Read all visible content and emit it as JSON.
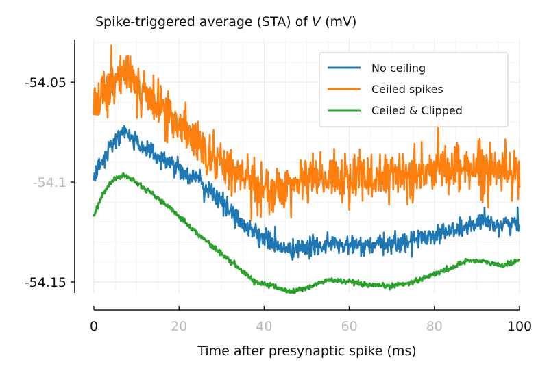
{
  "chart_data": {
    "type": "line",
    "title": {
      "prefix": "Spike-triggered average (STA) of ",
      "variable": "V",
      "suffix": "  (mV)"
    },
    "xlabel": "Time after presynaptic spike  (ms)",
    "ylabel": "",
    "xlim": [
      0,
      100
    ],
    "ylim": [
      -54.1555,
      -54.0287
    ],
    "x_ticks": [
      {
        "value": 0,
        "label": "0",
        "dim": false
      },
      {
        "value": 20,
        "label": "20",
        "dim": true
      },
      {
        "value": 40,
        "label": "40",
        "dim": true
      },
      {
        "value": 60,
        "label": "60",
        "dim": true
      },
      {
        "value": 80,
        "label": "80",
        "dim": true
      },
      {
        "value": 100,
        "label": "100",
        "dim": false
      }
    ],
    "y_ticks": [
      {
        "value": -54.05,
        "label": "-54.05",
        "dim": false
      },
      {
        "value": -54.1,
        "label": "-54.1",
        "dim": true
      },
      {
        "value": -54.15,
        "label": "-54.15",
        "dim": false
      }
    ],
    "grid": true,
    "legend_position": "top-right",
    "series": [
      {
        "name": "No ceiling",
        "color": "#1f77b4",
        "noise": 0.0025,
        "points": [
          [
            0,
            -54.098
          ],
          [
            2,
            -54.09
          ],
          [
            5,
            -54.079
          ],
          [
            7,
            -54.075
          ],
          [
            10,
            -54.08
          ],
          [
            15,
            -54.087
          ],
          [
            20,
            -54.093
          ],
          [
            25,
            -54.1
          ],
          [
            30,
            -54.11
          ],
          [
            35,
            -54.121
          ],
          [
            40,
            -54.128
          ],
          [
            45,
            -54.134
          ],
          [
            50,
            -54.133
          ],
          [
            55,
            -54.131
          ],
          [
            60,
            -54.132
          ],
          [
            65,
            -54.132
          ],
          [
            70,
            -54.131
          ],
          [
            75,
            -54.129
          ],
          [
            80,
            -54.126
          ],
          [
            85,
            -54.124
          ],
          [
            90,
            -54.121
          ],
          [
            95,
            -54.121
          ],
          [
            100,
            -54.121
          ]
        ]
      },
      {
        "name": "Ceiled spikes",
        "color": "#ff7f0e",
        "noise": 0.006,
        "points": [
          [
            0,
            -54.066
          ],
          [
            2,
            -54.058
          ],
          [
            5,
            -54.049
          ],
          [
            7,
            -54.044
          ],
          [
            10,
            -54.052
          ],
          [
            15,
            -54.06
          ],
          [
            20,
            -54.072
          ],
          [
            25,
            -54.082
          ],
          [
            30,
            -54.09
          ],
          [
            35,
            -54.098
          ],
          [
            40,
            -54.102
          ],
          [
            45,
            -54.104
          ],
          [
            50,
            -54.099
          ],
          [
            55,
            -54.097
          ],
          [
            60,
            -54.099
          ],
          [
            65,
            -54.098
          ],
          [
            70,
            -54.096
          ],
          [
            75,
            -54.095
          ],
          [
            80,
            -54.094
          ],
          [
            85,
            -54.093
          ],
          [
            90,
            -54.092
          ],
          [
            95,
            -54.093
          ],
          [
            100,
            -54.092
          ]
        ]
      },
      {
        "name": "Ceiled & Clipped",
        "color": "#2ca02c",
        "noise": 0.0006,
        "points": [
          [
            0,
            -54.117
          ],
          [
            2,
            -54.106
          ],
          [
            4,
            -54.1
          ],
          [
            7,
            -54.096
          ],
          [
            10,
            -54.1
          ],
          [
            15,
            -54.108
          ],
          [
            20,
            -54.117
          ],
          [
            25,
            -54.127
          ],
          [
            30,
            -54.136
          ],
          [
            35,
            -54.145
          ],
          [
            38,
            -54.15
          ],
          [
            42,
            -54.152
          ],
          [
            46,
            -54.155
          ],
          [
            50,
            -54.153
          ],
          [
            55,
            -54.149
          ],
          [
            60,
            -54.15
          ],
          [
            65,
            -54.152
          ],
          [
            70,
            -54.152
          ],
          [
            75,
            -54.15
          ],
          [
            80,
            -54.146
          ],
          [
            84,
            -54.143
          ],
          [
            88,
            -54.139
          ],
          [
            92,
            -54.14
          ],
          [
            96,
            -54.142
          ],
          [
            100,
            -54.139
          ]
        ]
      }
    ]
  }
}
